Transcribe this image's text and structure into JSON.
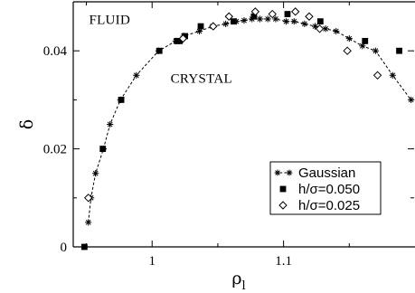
{
  "chart_data": {
    "type": "scatter",
    "title": "",
    "xlabel_main": "ρ",
    "xlabel_sub": "l",
    "ylabel": "δ",
    "xlim": [
      0.94,
      1.2
    ],
    "ylim": [
      0,
      0.05
    ],
    "xticks": [
      {
        "value": 1.0,
        "label": "1"
      },
      {
        "value": 1.1,
        "label": "1.1"
      }
    ],
    "xticks_minor": [
      0.95,
      1.05,
      1.15
    ],
    "yticks": [
      {
        "value": 0,
        "label": "0"
      },
      {
        "value": 0.02,
        "label": "0.02"
      },
      {
        "value": 0.04,
        "label": "0.04"
      }
    ],
    "yticks_minor": [
      0.01,
      0.03,
      0.05
    ],
    "grid": false,
    "legend_position": "bottom-right",
    "annotations": [
      {
        "text": "FLUID",
        "x": 0.952,
        "y": 0.0455
      },
      {
        "text": "CRYSTAL",
        "x": 1.014,
        "y": 0.0335
      }
    ],
    "series": [
      {
        "name": "Gaussian",
        "marker": "asterisk",
        "line": "dashed",
        "x": [
          0.9515,
          0.9535,
          0.957,
          0.963,
          0.968,
          0.976,
          0.988,
          1.005,
          1.018,
          1.024,
          1.036,
          1.046,
          1.056,
          1.064,
          1.07,
          1.076,
          1.082,
          1.088,
          1.094,
          1.102,
          1.108,
          1.116,
          1.124,
          1.132,
          1.14,
          1.15,
          1.16,
          1.17,
          1.183,
          1.197
        ],
        "y": [
          0.005,
          0.01,
          0.015,
          0.02,
          0.025,
          0.03,
          0.035,
          0.04,
          0.042,
          0.043,
          0.044,
          0.045,
          0.0455,
          0.046,
          0.0462,
          0.0465,
          0.0465,
          0.0465,
          0.0465,
          0.046,
          0.046,
          0.0455,
          0.045,
          0.0445,
          0.044,
          0.0425,
          0.041,
          0.04,
          0.035,
          0.03
        ]
      },
      {
        "name": "h/σ=0.050",
        "marker": "square",
        "x": [
          0.9485,
          0.9625,
          0.9765,
          1.0055,
          1.019,
          1.021,
          1.025,
          1.037,
          1.062,
          1.0775,
          1.103,
          1.128,
          1.162,
          1.188
        ],
        "y": [
          0.0,
          0.02,
          0.03,
          0.04,
          0.042,
          0.042,
          0.043,
          0.045,
          0.046,
          0.047,
          0.0475,
          0.046,
          0.042,
          0.04
        ]
      },
      {
        "name": "h/σ=0.025",
        "marker": "diamond",
        "x": [
          0.9515,
          1.0235,
          1.0465,
          1.0585,
          1.0785,
          1.0915,
          1.109,
          1.1195,
          1.1275,
          1.1485,
          1.1715
        ],
        "y": [
          0.01,
          0.0425,
          0.045,
          0.047,
          0.048,
          0.0475,
          0.048,
          0.047,
          0.0445,
          0.04,
          0.035
        ]
      }
    ]
  }
}
